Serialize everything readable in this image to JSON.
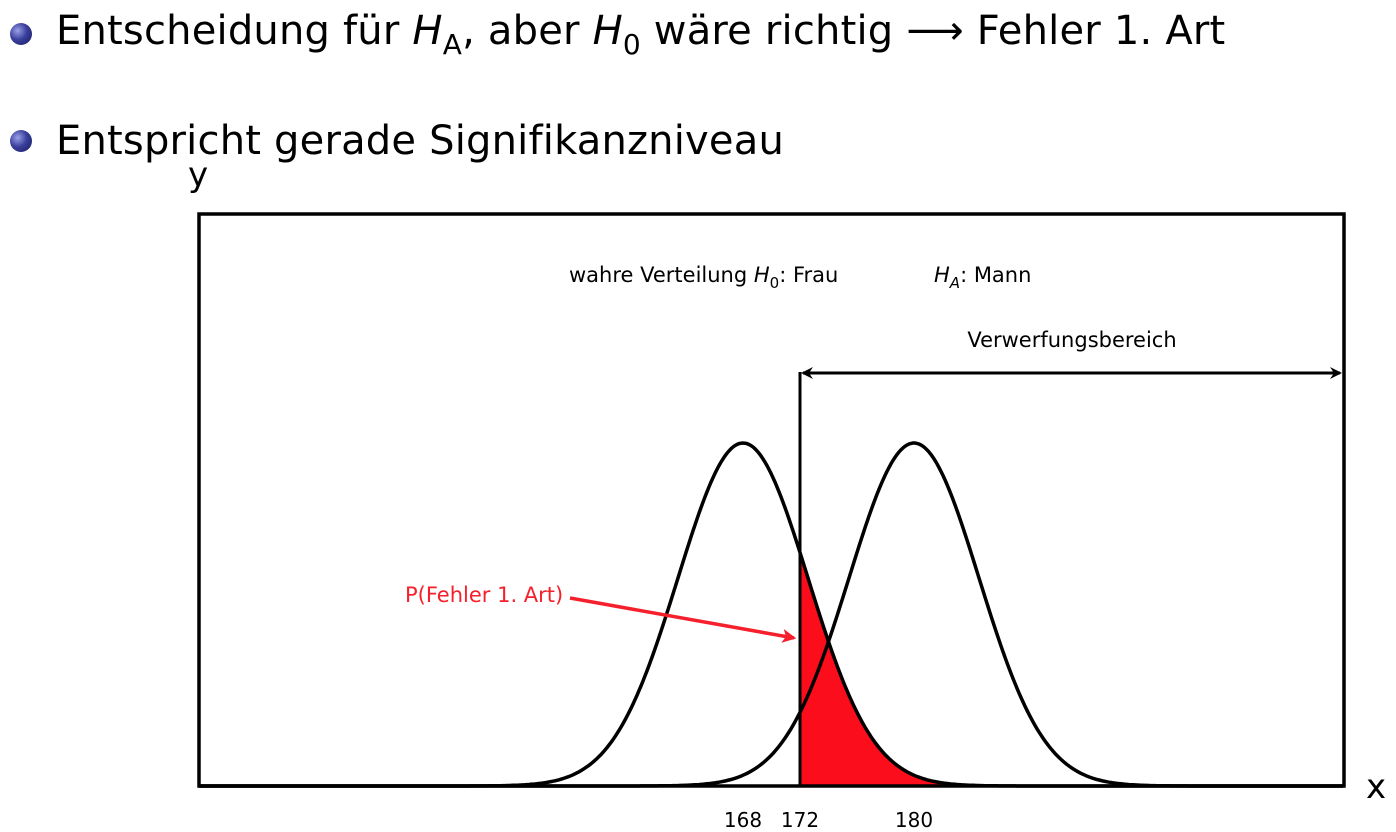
{
  "bullets": {
    "item1": {
      "text_before": "Entscheidung für ",
      "h_a_symbol": "H",
      "h_a_subscript": "A",
      "text_mid": ", aber ",
      "h_0_symbol": "H",
      "h_0_subscript": "0",
      "text_after": " wäre richtig ⟶ Fehler 1. Art"
    },
    "item2": {
      "text": "Entspricht gerade Signifikanzniveau"
    }
  },
  "diagram": {
    "y_axis_label": "y",
    "x_axis_label": "x",
    "h0_label_prefix": "wahre Verteilung ",
    "h0_symbol": "H",
    "h0_subscript": "0",
    "h0_label_suffix": ": Frau",
    "ha_symbol": "H",
    "ha_subscript": "A",
    "ha_label_suffix": ": Mann",
    "rejection_label": "Verwerfungsbereich",
    "error_label": "P(Fehler 1. Art)",
    "ticks": [
      "168",
      "172",
      "180"
    ],
    "colors": {
      "line": "#000000",
      "error_fill": "#fb0d1c",
      "error_text": "#f5202c"
    }
  },
  "chart_data": {
    "type": "area",
    "curves": [
      {
        "mean": 168
      },
      {
        "mean": 180
      }
    ],
    "critical_value": 172,
    "x_ticks": [
      168,
      172,
      180
    ],
    "shaded_region": "H0 density for x > 172",
    "rejection_region": "x > 172"
  }
}
